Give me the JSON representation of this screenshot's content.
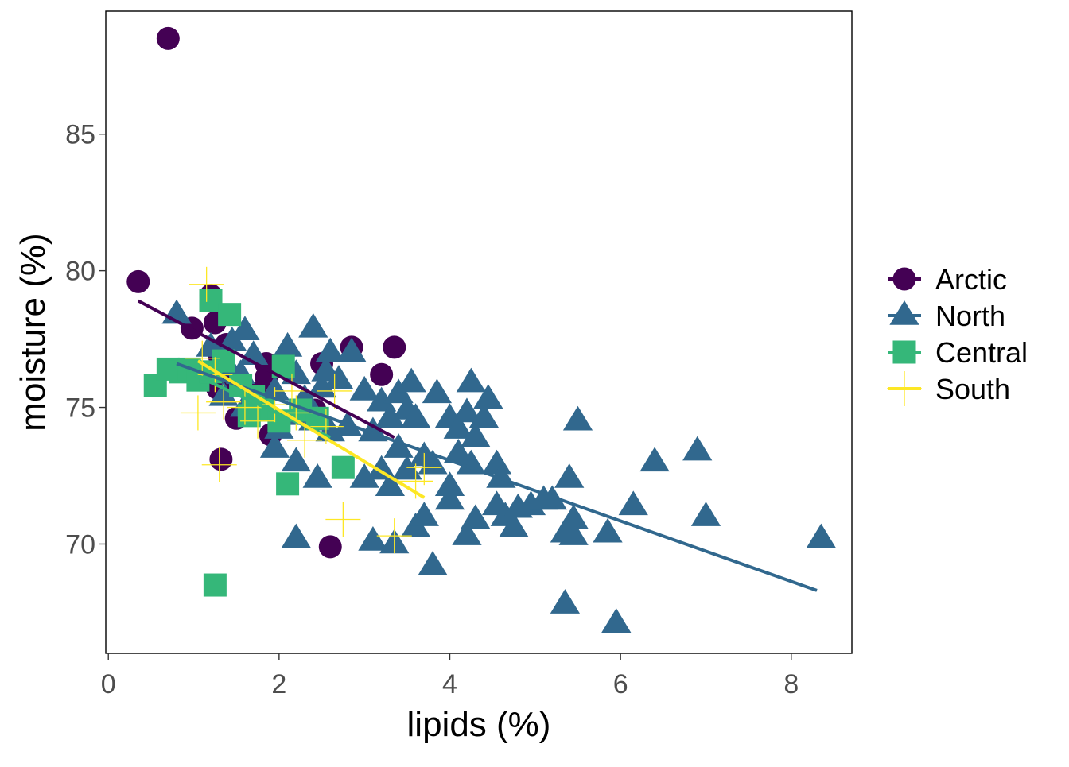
{
  "chart_data": {
    "type": "scatter",
    "xlabel": "lipids (%)",
    "ylabel": "moisture (%)",
    "xlim": [
      -0.03,
      8.71
    ],
    "ylim": [
      66.0,
      89.5
    ],
    "x_ticks": [
      0,
      2,
      4,
      6,
      8
    ],
    "x_tick_labels": [
      "0",
      "2",
      "4",
      "6",
      "8"
    ],
    "y_ticks": [
      70,
      75,
      80,
      85
    ],
    "y_tick_labels": [
      "70",
      "75",
      "80",
      "85"
    ],
    "grid": false,
    "legend_position": "right",
    "series": [
      {
        "name": "Arctic",
        "color": "#440154",
        "marker": "circle",
        "points": [
          [
            0.7,
            88.5
          ],
          [
            0.35,
            79.6
          ],
          [
            1.2,
            79.1
          ],
          [
            0.98,
            77.9
          ],
          [
            1.25,
            78.1
          ],
          [
            1.38,
            77.3
          ],
          [
            1.3,
            76.9
          ],
          [
            1.18,
            76.3
          ],
          [
            1.5,
            76.0
          ],
          [
            1.28,
            75.7
          ],
          [
            1.85,
            76.6
          ],
          [
            1.85,
            76.1
          ],
          [
            1.72,
            75.5
          ],
          [
            2.85,
            77.2
          ],
          [
            3.35,
            77.2
          ],
          [
            2.5,
            76.6
          ],
          [
            3.2,
            76.2
          ],
          [
            2.42,
            74.9
          ],
          [
            1.5,
            74.6
          ],
          [
            1.9,
            74.0
          ],
          [
            1.32,
            73.1
          ],
          [
            2.6,
            69.9
          ]
        ],
        "trend": [
          [
            0.35,
            78.9
          ],
          [
            3.35,
            73.9
          ]
        ]
      },
      {
        "name": "North",
        "color": "#31688e",
        "marker": "triangle",
        "points": [
          [
            0.8,
            78.4
          ],
          [
            1.6,
            77.8
          ],
          [
            1.45,
            77.4
          ],
          [
            1.7,
            76.9
          ],
          [
            1.2,
            77.2
          ],
          [
            1.4,
            76.5
          ],
          [
            1.55,
            76.2
          ],
          [
            1.35,
            75.4
          ],
          [
            1.6,
            75.0
          ],
          [
            1.85,
            74.9
          ],
          [
            1.95,
            75.6
          ],
          [
            2.0,
            74.2
          ],
          [
            1.95,
            73.5
          ],
          [
            2.1,
            77.2
          ],
          [
            2.2,
            76.2
          ],
          [
            2.4,
            77.9
          ],
          [
            2.6,
            77.0
          ],
          [
            2.55,
            76.3
          ],
          [
            2.3,
            75.3
          ],
          [
            2.5,
            75.7
          ],
          [
            2.7,
            76.0
          ],
          [
            2.85,
            77.0
          ],
          [
            2.2,
            74.7
          ],
          [
            2.4,
            74.5
          ],
          [
            2.6,
            74.1
          ],
          [
            2.8,
            74.3
          ],
          [
            2.2,
            73.0
          ],
          [
            2.45,
            72.4
          ],
          [
            2.2,
            70.2
          ],
          [
            3.0,
            75.6
          ],
          [
            3.2,
            75.2
          ],
          [
            3.4,
            75.5
          ],
          [
            3.5,
            74.9
          ],
          [
            3.3,
            74.6
          ],
          [
            3.6,
            74.6
          ],
          [
            3.1,
            74.1
          ],
          [
            3.4,
            73.5
          ],
          [
            3.2,
            72.7
          ],
          [
            3.5,
            72.7
          ],
          [
            3.0,
            72.4
          ],
          [
            3.3,
            72.1
          ],
          [
            3.7,
            73.2
          ],
          [
            3.8,
            72.9
          ],
          [
            3.1,
            70.1
          ],
          [
            3.35,
            70.0
          ],
          [
            3.6,
            70.6
          ],
          [
            3.7,
            71.0
          ],
          [
            3.8,
            69.2
          ],
          [
            3.55,
            75.9
          ],
          [
            3.85,
            75.5
          ],
          [
            4.0,
            74.6
          ],
          [
            4.2,
            74.8
          ],
          [
            4.25,
            75.9
          ],
          [
            4.45,
            75.3
          ],
          [
            4.1,
            74.2
          ],
          [
            4.3,
            73.9
          ],
          [
            4.4,
            74.6
          ],
          [
            4.1,
            73.3
          ],
          [
            4.25,
            72.9
          ],
          [
            4.0,
            72.1
          ],
          [
            4.55,
            72.9
          ],
          [
            4.6,
            72.4
          ],
          [
            4.0,
            71.6
          ],
          [
            4.2,
            70.3
          ],
          [
            4.3,
            70.9
          ],
          [
            4.55,
            71.4
          ],
          [
            4.65,
            71.0
          ],
          [
            4.75,
            70.6
          ],
          [
            4.8,
            71.3
          ],
          [
            4.95,
            71.4
          ],
          [
            5.1,
            71.6
          ],
          [
            5.2,
            71.6
          ],
          [
            5.35,
            70.4
          ],
          [
            5.45,
            70.9
          ],
          [
            5.45,
            70.3
          ],
          [
            5.4,
            72.4
          ],
          [
            5.5,
            74.5
          ],
          [
            5.35,
            67.8
          ],
          [
            5.85,
            70.4
          ],
          [
            5.95,
            67.1
          ],
          [
            6.15,
            71.4
          ],
          [
            6.4,
            73.0
          ],
          [
            6.9,
            73.4
          ],
          [
            7.0,
            71.0
          ],
          [
            8.35,
            70.2
          ]
        ],
        "trend": [
          [
            0.8,
            76.6
          ],
          [
            8.3,
            68.3
          ]
        ]
      },
      {
        "name": "Central",
        "color": "#35b779",
        "marker": "square",
        "points": [
          [
            1.2,
            78.9
          ],
          [
            1.42,
            78.4
          ],
          [
            0.55,
            75.8
          ],
          [
            0.7,
            76.4
          ],
          [
            0.85,
            76.3
          ],
          [
            0.95,
            76.4
          ],
          [
            1.05,
            76.0
          ],
          [
            1.2,
            76.3
          ],
          [
            1.35,
            76.7
          ],
          [
            1.55,
            75.8
          ],
          [
            1.7,
            75.4
          ],
          [
            1.82,
            74.9
          ],
          [
            1.65,
            74.7
          ],
          [
            2.0,
            74.5
          ],
          [
            2.05,
            76.5
          ],
          [
            2.25,
            74.9
          ],
          [
            2.45,
            74.6
          ],
          [
            2.75,
            72.8
          ],
          [
            2.1,
            72.2
          ],
          [
            1.25,
            68.5
          ]
        ],
        "trend": [
          [
            1.0,
            76.2
          ],
          [
            2.6,
            73.9
          ]
        ]
      },
      {
        "name": "South",
        "color": "#fde725",
        "marker": "cross",
        "points": [
          [
            1.15,
            79.5
          ],
          [
            1.1,
            76.8
          ],
          [
            1.25,
            76.2
          ],
          [
            1.05,
            74.8
          ],
          [
            1.35,
            75.2
          ],
          [
            1.6,
            75.0
          ],
          [
            1.75,
            74.5
          ],
          [
            1.95,
            75.1
          ],
          [
            2.2,
            74.8
          ],
          [
            2.15,
            75.6
          ],
          [
            2.3,
            73.8
          ],
          [
            2.55,
            74.3
          ],
          [
            2.65,
            75.6
          ],
          [
            1.3,
            72.9
          ],
          [
            2.75,
            70.9
          ],
          [
            3.35,
            70.3
          ],
          [
            3.6,
            72.3
          ],
          [
            3.7,
            72.8
          ]
        ],
        "trend": [
          [
            1.05,
            76.7
          ],
          [
            3.7,
            71.7
          ]
        ]
      }
    ]
  }
}
